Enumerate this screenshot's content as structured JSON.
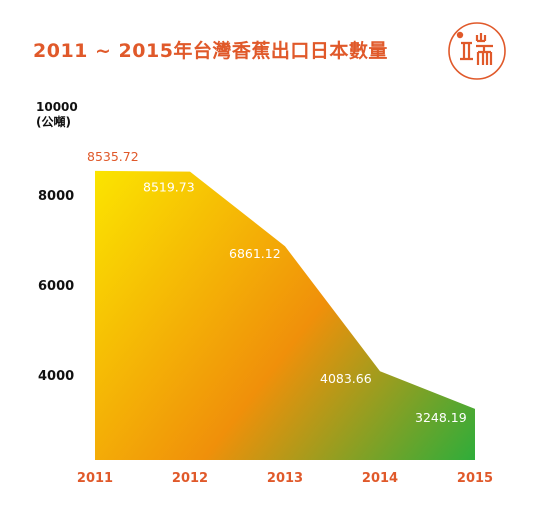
{
  "title": "2011 ~ 2015年台灣香蕉出口日本數量",
  "colors": {
    "accent": "#e0592a",
    "gradient_start": "#fbe500",
    "gradient_mid": "#f0900a",
    "gradient_end": "#2fad3a"
  },
  "chart_data": {
    "type": "area",
    "title": "2011 ~ 2015年台灣香蕉出口日本數量",
    "ylabel": "(公噸)",
    "x": [
      "2011",
      "2012",
      "2013",
      "2014",
      "2015"
    ],
    "values": [
      8535.72,
      8519.73,
      6861.12,
      4083.66,
      3248.19
    ],
    "data_labels": [
      "8535.72",
      "8519.73",
      "6861.12",
      "4083.66",
      "3248.19"
    ],
    "yticks": [
      4000,
      6000,
      8000,
      10000
    ],
    "ylim": [
      2000,
      10000
    ],
    "grid": false,
    "legend": "none"
  }
}
